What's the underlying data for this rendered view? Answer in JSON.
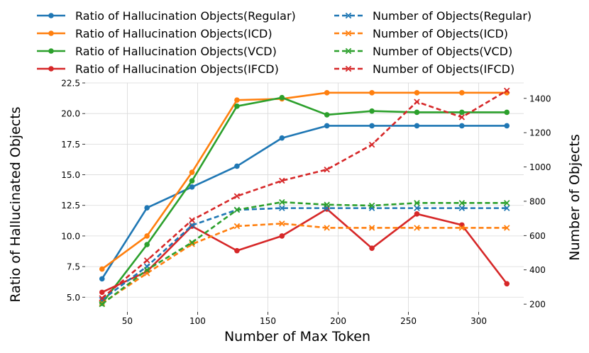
{
  "chart_data": {
    "type": "line",
    "x": [
      32,
      64,
      96,
      128,
      160,
      192,
      224,
      256,
      288,
      320
    ],
    "xlabel": "Number of Max Token",
    "ylabel_left": "Ratio of Hallucinated Objects",
    "ylabel_right": "Number of Objects",
    "xlim": [
      20,
      332
    ],
    "ylim_left": [
      3.8,
      22.5
    ],
    "ylim_right": [
      155,
      1490
    ],
    "xticks": [
      50,
      100,
      150,
      200,
      250,
      300
    ],
    "yticks_left": [
      5.0,
      7.5,
      10.0,
      12.5,
      15.0,
      17.5,
      20.0,
      22.5
    ],
    "yticks_right": [
      200,
      400,
      600,
      800,
      1000,
      1200,
      1400
    ],
    "xtick_labels": [
      "50",
      "100",
      "150",
      "200",
      "250",
      "300"
    ],
    "ytick_labels_left": [
      "5.0",
      "7.5",
      "10.0",
      "12.5",
      "15.0",
      "17.5",
      "20.0",
      "22.5"
    ],
    "ytick_labels_right": [
      "200",
      "400",
      "600",
      "800",
      "1000",
      "1200",
      "1400"
    ],
    "grid": true,
    "legend_position": "top",
    "series": [
      {
        "name": "Ratio of Hallucination Objects(Regular)",
        "axis": "left",
        "style": "solid",
        "marker": "circle",
        "color": "#1f77b4",
        "values": [
          6.5,
          12.3,
          14.0,
          15.7,
          18.0,
          19.0,
          19.0,
          19.0,
          19.0,
          19.0
        ]
      },
      {
        "name": "Ratio of Hallucination Objects(ICD)",
        "axis": "left",
        "style": "solid",
        "marker": "circle",
        "color": "#ff7f0e",
        "values": [
          7.3,
          10.0,
          15.2,
          21.1,
          21.2,
          21.7,
          21.7,
          21.7,
          21.7,
          21.7
        ]
      },
      {
        "name": "Ratio of Hallucination Objects(VCD)",
        "axis": "left",
        "style": "solid",
        "marker": "circle",
        "color": "#2ca02c",
        "values": [
          4.5,
          9.3,
          14.5,
          20.6,
          21.3,
          19.9,
          20.2,
          20.1,
          20.1,
          20.1
        ]
      },
      {
        "name": "Ratio of Hallucination Objects(IFCD)",
        "axis": "left",
        "style": "solid",
        "marker": "circle",
        "color": "#d62728",
        "values": [
          5.4,
          7.1,
          10.8,
          8.8,
          10.0,
          12.2,
          9.0,
          11.8,
          10.9,
          6.1
        ]
      },
      {
        "name": "Number of Objects(Regular)",
        "axis": "right",
        "style": "dashed",
        "marker": "x",
        "color": "#1f77b4",
        "values": [
          225,
          420,
          660,
          750,
          760,
          760,
          760,
          760,
          760,
          760
        ]
      },
      {
        "name": "Number of Objects(ICD)",
        "axis": "right",
        "style": "dashed",
        "marker": "x",
        "color": "#ff7f0e",
        "values": [
          205,
          380,
          550,
          655,
          670,
          645,
          645,
          645,
          645,
          645
        ]
      },
      {
        "name": "Number of Objects(VCD)",
        "axis": "right",
        "style": "dashed",
        "marker": "x",
        "color": "#2ca02c",
        "values": [
          200,
          400,
          560,
          750,
          795,
          780,
          775,
          790,
          790,
          790
        ]
      },
      {
        "name": "Number of Objects(IFCD)",
        "axis": "right",
        "style": "dashed",
        "marker": "x",
        "color": "#d62728",
        "values": [
          235,
          455,
          690,
          830,
          920,
          985,
          1130,
          1380,
          1290,
          1445
        ]
      }
    ]
  }
}
